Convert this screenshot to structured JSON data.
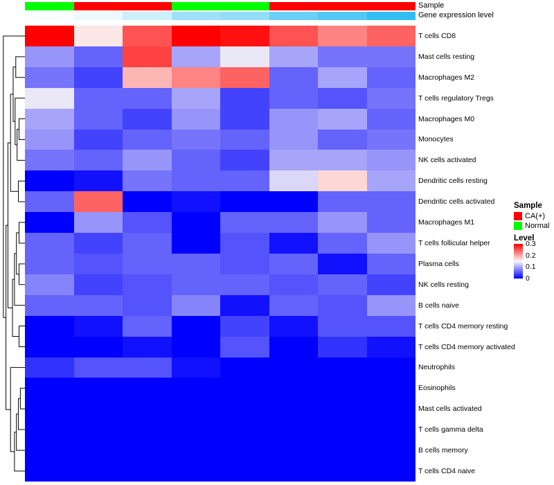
{
  "annotations": {
    "sample_label": "Sample",
    "gene_label": "Gene expression level"
  },
  "legend": {
    "sample_title": "Sample",
    "sample_items": [
      {
        "label": "CA(+)",
        "color": "#FF0000"
      },
      {
        "label": "Normal",
        "color": "#00FF00"
      }
    ],
    "level_title": "Level",
    "level_ticks": [
      "0.3",
      "0.2",
      "0.1",
      "0"
    ],
    "level_gradient": [
      "#FF0000",
      "#FBF8F6",
      "#0000FF"
    ]
  },
  "chart_data": {
    "type": "heatmap",
    "n_cols": 8,
    "rows": [
      "T cells CD8",
      "Mast cells resting",
      "Macrophages M2",
      "T cells regulatory  Tregs",
      "Macrophages M0",
      "Monocytes",
      "NK cells activated",
      "Dendritic cells resting",
      "Dendritic cells activated",
      "Macrophages M1",
      "T cells follicular helper",
      "Plasma cells",
      "NK cells resting",
      "B cells naive",
      "T cells CD4 memory resting",
      "T cells CD4 memory activated",
      "Neutrophils",
      "Eosinophils",
      "Mast cells activated",
      "T cells gamma delta",
      "B cells memory",
      "T cells CD4 naive"
    ],
    "values": [
      [
        0.3,
        0.16,
        0.25,
        0.3,
        0.29,
        0.25,
        0.22,
        0.24
      ],
      [
        0.09,
        0.06,
        0.26,
        0.1,
        0.14,
        0.1,
        0.07,
        0.07
      ],
      [
        0.07,
        0.04,
        0.19,
        0.22,
        0.24,
        0.06,
        0.1,
        0.06
      ],
      [
        0.14,
        0.06,
        0.06,
        0.1,
        0.04,
        0.06,
        0.05,
        0.07
      ],
      [
        0.1,
        0.06,
        0.04,
        0.09,
        0.04,
        0.09,
        0.1,
        0.06
      ],
      [
        0.09,
        0.04,
        0.06,
        0.07,
        0.06,
        0.09,
        0.06,
        0.07
      ],
      [
        0.07,
        0.06,
        0.09,
        0.06,
        0.04,
        0.1,
        0.1,
        0.09
      ],
      [
        0.0,
        0.01,
        0.07,
        0.06,
        0.06,
        0.13,
        0.17,
        0.1
      ],
      [
        0.06,
        0.24,
        0.0,
        0.01,
        0.0,
        0.0,
        0.06,
        0.06
      ],
      [
        0.0,
        0.09,
        0.05,
        0.0,
        0.06,
        0.06,
        0.09,
        0.06
      ],
      [
        0.06,
        0.04,
        0.06,
        0.0,
        0.05,
        0.01,
        0.06,
        0.09
      ],
      [
        0.06,
        0.05,
        0.06,
        0.06,
        0.05,
        0.06,
        0.01,
        0.06
      ],
      [
        0.08,
        0.04,
        0.05,
        0.06,
        0.06,
        0.05,
        0.06,
        0.04
      ],
      [
        0.06,
        0.06,
        0.05,
        0.08,
        0.01,
        0.06,
        0.05,
        0.09
      ],
      [
        0.0,
        0.01,
        0.06,
        0.0,
        0.04,
        0.01,
        0.05,
        0.05
      ],
      [
        0.0,
        0.0,
        0.01,
        0.0,
        0.05,
        0.0,
        0.03,
        0.01
      ],
      [
        0.03,
        0.05,
        0.05,
        0.01,
        0.0,
        0.0,
        0.0,
        0.0
      ],
      [
        0.0,
        0.0,
        0.0,
        0.0,
        0.0,
        0.0,
        0.0,
        0.0
      ],
      [
        0.0,
        0.0,
        0.0,
        0.0,
        0.0,
        0.0,
        0.0,
        0.0
      ],
      [
        0.0,
        0.0,
        0.0,
        0.0,
        0.0,
        0.0,
        0.0,
        0.0
      ],
      [
        0.0,
        0.0,
        0.0,
        0.0,
        0.0,
        0.0,
        0.0,
        0.0
      ],
      [
        0.0,
        0.0,
        0.0,
        0.0,
        0.0,
        0.0,
        0.0,
        0.0
      ]
    ],
    "col_annotations": {
      "sample": [
        "Normal",
        "CA(+)",
        "CA(+)",
        "Normal",
        "Normal",
        "CA(+)",
        "CA(+)",
        "CA(+)"
      ],
      "sample_colors": {
        "CA(+)": "#FF0000",
        "Normal": "#00FF00"
      },
      "gene_expression_level": [
        0.02,
        0.07,
        0.2,
        0.38,
        0.42,
        0.58,
        0.68,
        0.8
      ],
      "gene_gradient": [
        "#FFFFFF",
        "#00AEEF"
      ]
    },
    "color_scale": {
      "min": 0,
      "mid": 0.15,
      "max": 0.3,
      "min_color": "#0000FF",
      "mid_color": "#FBF8F6",
      "max_color": "#FF0000"
    },
    "legend_position": "right",
    "grid": false
  }
}
